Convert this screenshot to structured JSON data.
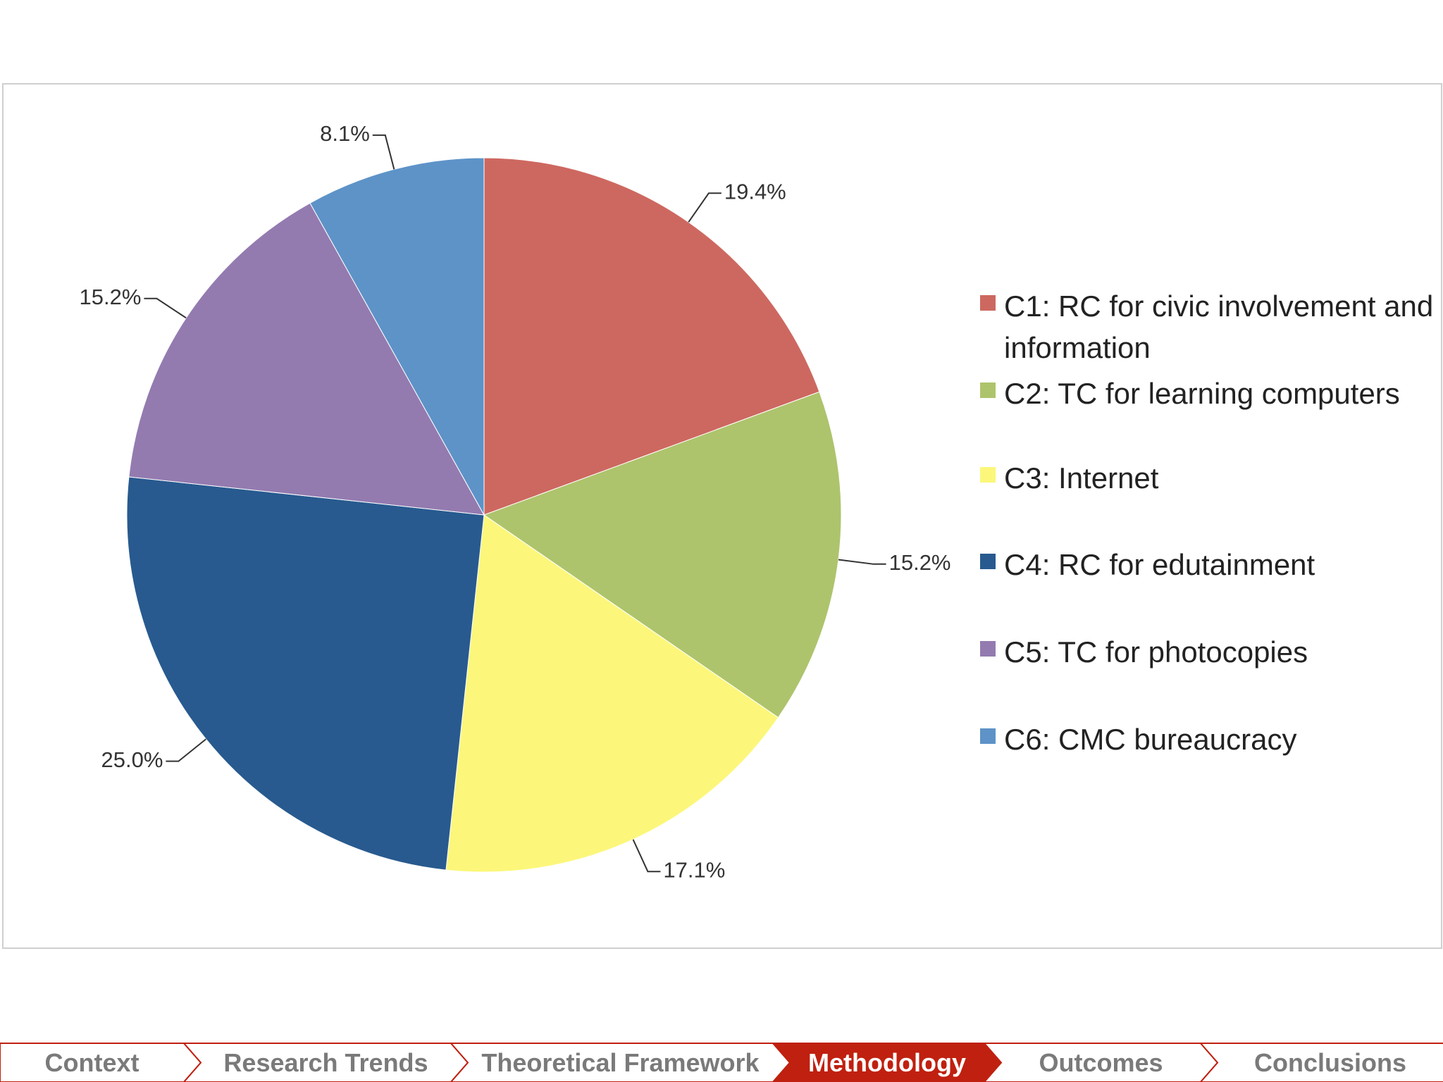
{
  "chart_data": {
    "type": "pie",
    "categories": [
      "C1: RC for civic involvement and information",
      "C2: TC for learning computers",
      "C3: Internet",
      "C4: RC for edutainment",
      "C5: TC for photocopies",
      "C6: CMC bureaucracy"
    ],
    "values": [
      19.4,
      15.2,
      17.1,
      25.0,
      15.2,
      8.1
    ],
    "value_labels": [
      "19.4%",
      "15.2%",
      "17.1%",
      "25.0%",
      "15.2%",
      "8.1%"
    ],
    "colors": [
      "#cd6860",
      "#adc46c",
      "#fcf77a",
      "#285a8f",
      "#937bb0",
      "#5e93c8"
    ],
    "legend": "right"
  },
  "nav": {
    "items": [
      "Context",
      "Research Trends",
      "Theoretical Framework",
      "Methodology",
      "Outcomes",
      "Conclusions"
    ],
    "active": 3
  }
}
